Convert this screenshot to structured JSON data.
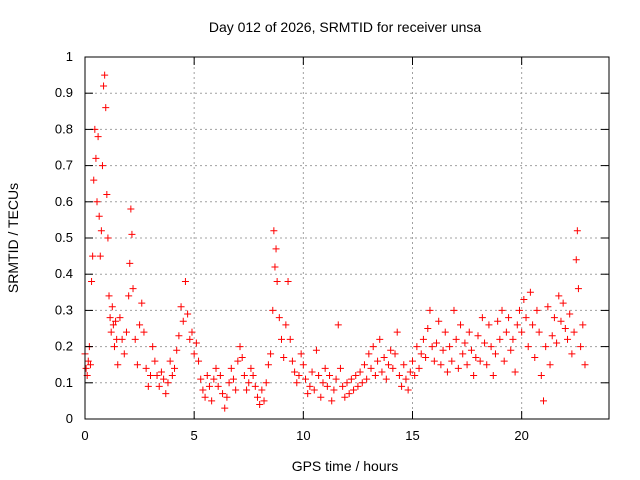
{
  "chart_data": {
    "type": "scatter",
    "title": "Day 012 of 2026, SRMTID for receiver unsa",
    "xlabel": "GPS time / hours",
    "ylabel": "SRMTID / TECUs",
    "xlim": [
      0,
      24
    ],
    "ylim": [
      0,
      1
    ],
    "xticks": [
      0,
      5,
      10,
      15,
      20
    ],
    "xtick_labels": [
      "0",
      "5",
      "10",
      "15",
      "20"
    ],
    "yticks": [
      0,
      0.1,
      0.2,
      0.3,
      0.4,
      0.5,
      0.6,
      0.7,
      0.8,
      0.9,
      1
    ],
    "ytick_labels": [
      "0",
      "0.1",
      "0.2",
      "0.3",
      "0.4",
      "0.5",
      "0.6",
      "0.7",
      "0.8",
      "0.9",
      "1"
    ],
    "grid": true,
    "marker": "+",
    "color": "#ff0000",
    "series": [
      {
        "name": "SRMTID",
        "points": [
          [
            0.0,
            0.18
          ],
          [
            0.05,
            0.14
          ],
          [
            0.1,
            0.12
          ],
          [
            0.15,
            0.16
          ],
          [
            0.2,
            0.2
          ],
          [
            0.25,
            0.15
          ],
          [
            0.3,
            0.38
          ],
          [
            0.35,
            0.45
          ],
          [
            0.4,
            0.66
          ],
          [
            0.45,
            0.8
          ],
          [
            0.5,
            0.72
          ],
          [
            0.55,
            0.6
          ],
          [
            0.6,
            0.78
          ],
          [
            0.65,
            0.56
          ],
          [
            0.7,
            0.45
          ],
          [
            0.75,
            0.52
          ],
          [
            0.8,
            0.7
          ],
          [
            0.85,
            0.92
          ],
          [
            0.9,
            0.95
          ],
          [
            0.95,
            0.86
          ],
          [
            1.0,
            0.62
          ],
          [
            1.05,
            0.5
          ],
          [
            1.1,
            0.34
          ],
          [
            1.15,
            0.28
          ],
          [
            1.2,
            0.24
          ],
          [
            1.25,
            0.31
          ],
          [
            1.3,
            0.26
          ],
          [
            1.35,
            0.2
          ],
          [
            1.4,
            0.27
          ],
          [
            1.45,
            0.22
          ],
          [
            1.5,
            0.15
          ],
          [
            1.6,
            0.28
          ],
          [
            1.7,
            0.22
          ],
          [
            1.8,
            0.18
          ],
          [
            1.9,
            0.24
          ],
          [
            2.0,
            0.34
          ],
          [
            2.05,
            0.43
          ],
          [
            2.1,
            0.58
          ],
          [
            2.15,
            0.51
          ],
          [
            2.2,
            0.36
          ],
          [
            2.3,
            0.22
          ],
          [
            2.4,
            0.15
          ],
          [
            2.5,
            0.26
          ],
          [
            2.6,
            0.32
          ],
          [
            2.7,
            0.24
          ],
          [
            2.8,
            0.14
          ],
          [
            2.9,
            0.09
          ],
          [
            3.0,
            0.12
          ],
          [
            3.1,
            0.2
          ],
          [
            3.2,
            0.16
          ],
          [
            3.3,
            0.12
          ],
          [
            3.4,
            0.09
          ],
          [
            3.5,
            0.13
          ],
          [
            3.6,
            0.11
          ],
          [
            3.7,
            0.07
          ],
          [
            3.8,
            0.1
          ],
          [
            3.9,
            0.16
          ],
          [
            4.0,
            0.12
          ],
          [
            4.1,
            0.14
          ],
          [
            4.2,
            0.19
          ],
          [
            4.3,
            0.23
          ],
          [
            4.4,
            0.31
          ],
          [
            4.5,
            0.27
          ],
          [
            4.6,
            0.38
          ],
          [
            4.7,
            0.29
          ],
          [
            4.8,
            0.22
          ],
          [
            4.9,
            0.24
          ],
          [
            5.0,
            0.18
          ],
          [
            5.1,
            0.21
          ],
          [
            5.2,
            0.16
          ],
          [
            5.3,
            0.11
          ],
          [
            5.4,
            0.08
          ],
          [
            5.5,
            0.06
          ],
          [
            5.6,
            0.12
          ],
          [
            5.7,
            0.09
          ],
          [
            5.8,
            0.05
          ],
          [
            5.9,
            0.11
          ],
          [
            6.0,
            0.14
          ],
          [
            6.1,
            0.09
          ],
          [
            6.2,
            0.12
          ],
          [
            6.3,
            0.07
          ],
          [
            6.4,
            0.03
          ],
          [
            6.5,
            0.06
          ],
          [
            6.6,
            0.1
          ],
          [
            6.7,
            0.14
          ],
          [
            6.8,
            0.11
          ],
          [
            6.9,
            0.08
          ],
          [
            7.0,
            0.16
          ],
          [
            7.1,
            0.2
          ],
          [
            7.2,
            0.17
          ],
          [
            7.3,
            0.12
          ],
          [
            7.4,
            0.08
          ],
          [
            7.5,
            0.1
          ],
          [
            7.6,
            0.14
          ],
          [
            7.7,
            0.12
          ],
          [
            7.8,
            0.09
          ],
          [
            7.9,
            0.06
          ],
          [
            8.0,
            0.04
          ],
          [
            8.1,
            0.08
          ],
          [
            8.2,
            0.05
          ],
          [
            8.3,
            0.1
          ],
          [
            8.4,
            0.15
          ],
          [
            8.5,
            0.18
          ],
          [
            8.6,
            0.3
          ],
          [
            8.65,
            0.52
          ],
          [
            8.7,
            0.42
          ],
          [
            8.75,
            0.47
          ],
          [
            8.8,
            0.38
          ],
          [
            8.9,
            0.28
          ],
          [
            9.0,
            0.22
          ],
          [
            9.1,
            0.17
          ],
          [
            9.2,
            0.26
          ],
          [
            9.3,
            0.38
          ],
          [
            9.4,
            0.22
          ],
          [
            9.5,
            0.16
          ],
          [
            9.6,
            0.13
          ],
          [
            9.7,
            0.1
          ],
          [
            9.8,
            0.12
          ],
          [
            9.9,
            0.18
          ],
          [
            10.0,
            0.15
          ],
          [
            10.1,
            0.11
          ],
          [
            10.2,
            0.07
          ],
          [
            10.3,
            0.09
          ],
          [
            10.4,
            0.13
          ],
          [
            10.5,
            0.08
          ],
          [
            10.6,
            0.19
          ],
          [
            10.7,
            0.12
          ],
          [
            10.8,
            0.06
          ],
          [
            10.9,
            0.1
          ],
          [
            11.0,
            0.14
          ],
          [
            11.1,
            0.09
          ],
          [
            11.2,
            0.12
          ],
          [
            11.3,
            0.05
          ],
          [
            11.4,
            0.08
          ],
          [
            11.5,
            0.11
          ],
          [
            11.6,
            0.26
          ],
          [
            11.7,
            0.14
          ],
          [
            11.8,
            0.09
          ],
          [
            11.9,
            0.06
          ],
          [
            12.0,
            0.1
          ],
          [
            12.1,
            0.07
          ],
          [
            12.2,
            0.11
          ],
          [
            12.3,
            0.08
          ],
          [
            12.4,
            0.12
          ],
          [
            12.5,
            0.09
          ],
          [
            12.6,
            0.13
          ],
          [
            12.7,
            0.1
          ],
          [
            12.8,
            0.15
          ],
          [
            12.9,
            0.11
          ],
          [
            13.0,
            0.18
          ],
          [
            13.1,
            0.14
          ],
          [
            13.2,
            0.2
          ],
          [
            13.3,
            0.12
          ],
          [
            13.4,
            0.16
          ],
          [
            13.5,
            0.22
          ],
          [
            13.6,
            0.13
          ],
          [
            13.7,
            0.17
          ],
          [
            13.8,
            0.11
          ],
          [
            13.9,
            0.15
          ],
          [
            14.0,
            0.19
          ],
          [
            14.1,
            0.14
          ],
          [
            14.2,
            0.18
          ],
          [
            14.3,
            0.24
          ],
          [
            14.4,
            0.12
          ],
          [
            14.5,
            0.09
          ],
          [
            14.6,
            0.15
          ],
          [
            14.7,
            0.11
          ],
          [
            14.8,
            0.08
          ],
          [
            14.9,
            0.13
          ],
          [
            15.0,
            0.16
          ],
          [
            15.1,
            0.12
          ],
          [
            15.2,
            0.2
          ],
          [
            15.3,
            0.14
          ],
          [
            15.4,
            0.18
          ],
          [
            15.5,
            0.22
          ],
          [
            15.6,
            0.17
          ],
          [
            15.7,
            0.25
          ],
          [
            15.8,
            0.3
          ],
          [
            15.9,
            0.2
          ],
          [
            16.0,
            0.16
          ],
          [
            16.1,
            0.21
          ],
          [
            16.2,
            0.27
          ],
          [
            16.3,
            0.15
          ],
          [
            16.4,
            0.19
          ],
          [
            16.5,
            0.24
          ],
          [
            16.6,
            0.13
          ],
          [
            16.7,
            0.2
          ],
          [
            16.8,
            0.16
          ],
          [
            16.9,
            0.3
          ],
          [
            17.0,
            0.22
          ],
          [
            17.1,
            0.14
          ],
          [
            17.2,
            0.26
          ],
          [
            17.3,
            0.18
          ],
          [
            17.4,
            0.21
          ],
          [
            17.5,
            0.15
          ],
          [
            17.6,
            0.24
          ],
          [
            17.7,
            0.19
          ],
          [
            17.8,
            0.12
          ],
          [
            17.9,
            0.17
          ],
          [
            18.0,
            0.23
          ],
          [
            18.1,
            0.16
          ],
          [
            18.2,
            0.28
          ],
          [
            18.3,
            0.21
          ],
          [
            18.4,
            0.15
          ],
          [
            18.5,
            0.26
          ],
          [
            18.6,
            0.2
          ],
          [
            18.7,
            0.12
          ],
          [
            18.8,
            0.18
          ],
          [
            18.9,
            0.27
          ],
          [
            19.0,
            0.22
          ],
          [
            19.1,
            0.3
          ],
          [
            19.2,
            0.16
          ],
          [
            19.3,
            0.24
          ],
          [
            19.4,
            0.28
          ],
          [
            19.5,
            0.19
          ],
          [
            19.6,
            0.22
          ],
          [
            19.7,
            0.13
          ],
          [
            19.8,
            0.26
          ],
          [
            19.9,
            0.3
          ],
          [
            20.0,
            0.24
          ],
          [
            20.1,
            0.33
          ],
          [
            20.2,
            0.28
          ],
          [
            20.3,
            0.2
          ],
          [
            20.4,
            0.35
          ],
          [
            20.5,
            0.26
          ],
          [
            20.6,
            0.17
          ],
          [
            20.7,
            0.3
          ],
          [
            20.8,
            0.24
          ],
          [
            20.9,
            0.12
          ],
          [
            21.0,
            0.05
          ],
          [
            21.1,
            0.2
          ],
          [
            21.2,
            0.31
          ],
          [
            21.3,
            0.15
          ],
          [
            21.4,
            0.23
          ],
          [
            21.5,
            0.28
          ],
          [
            21.6,
            0.21
          ],
          [
            21.7,
            0.34
          ],
          [
            21.8,
            0.27
          ],
          [
            21.9,
            0.32
          ],
          [
            22.0,
            0.25
          ],
          [
            22.1,
            0.22
          ],
          [
            22.2,
            0.29
          ],
          [
            22.3,
            0.18
          ],
          [
            22.4,
            0.24
          ],
          [
            22.5,
            0.44
          ],
          [
            22.55,
            0.52
          ],
          [
            22.6,
            0.36
          ],
          [
            22.7,
            0.2
          ],
          [
            22.8,
            0.26
          ],
          [
            22.9,
            0.15
          ]
        ]
      }
    ]
  }
}
